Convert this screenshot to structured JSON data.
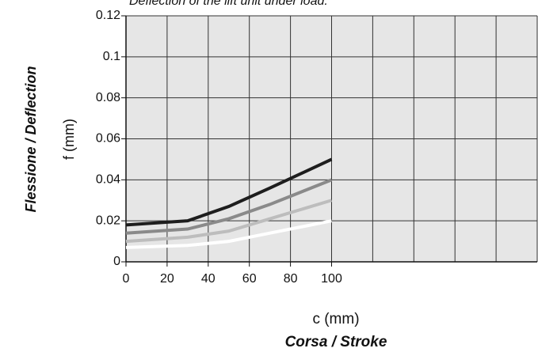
{
  "chart_data": {
    "type": "line",
    "title": "Deflection of the lift unit under load.",
    "ylabel": [
      "Flessione / Deflection",
      "f (mm)"
    ],
    "xlabel": [
      "c (mm)",
      "Corsa / Stroke"
    ],
    "x": [
      0,
      30,
      50,
      70,
      100
    ],
    "series": [
      {
        "color": "#1e1e1e",
        "values": [
          0.018,
          0.02,
          0.027,
          0.036,
          0.05
        ]
      },
      {
        "color": "#8a8a8a",
        "values": [
          0.014,
          0.016,
          0.021,
          0.028,
          0.04
        ]
      },
      {
        "color": "#bdbdbd",
        "values": [
          0.01,
          0.012,
          0.015,
          0.021,
          0.03
        ]
      },
      {
        "color": "#ffffff",
        "values": [
          0.007,
          0.008,
          0.01,
          0.014,
          0.02
        ]
      }
    ],
    "xlim": [
      0,
      200
    ],
    "xticks": [
      0,
      20,
      40,
      60,
      80,
      100
    ],
    "ylim": [
      0,
      0.12
    ],
    "yticks": [
      0,
      0.02,
      0.04,
      0.06,
      0.08,
      0.1,
      0.12
    ],
    "grid": true,
    "background": "#e6e6e6"
  }
}
